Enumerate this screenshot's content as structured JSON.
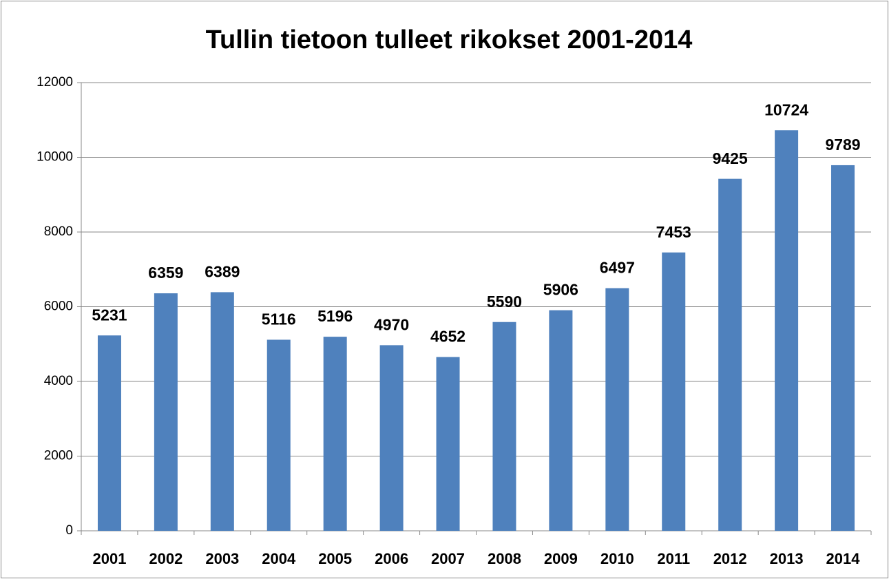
{
  "chart_data": {
    "type": "bar",
    "title": "Tullin tietoon tulleet rikokset 2001-2014",
    "categories": [
      "2001",
      "2002",
      "2003",
      "2004",
      "2005",
      "2006",
      "2007",
      "2008",
      "2009",
      "2010",
      "2011",
      "2012",
      "2013",
      "2014"
    ],
    "values": [
      5231,
      6359,
      6389,
      5116,
      5196,
      4970,
      4652,
      5590,
      5906,
      6497,
      7453,
      9425,
      10724,
      9789
    ],
    "color": "#4f81bd",
    "ylim": [
      0,
      12000
    ],
    "yticks": [
      0,
      2000,
      4000,
      6000,
      8000,
      10000,
      12000
    ],
    "grid": true
  }
}
